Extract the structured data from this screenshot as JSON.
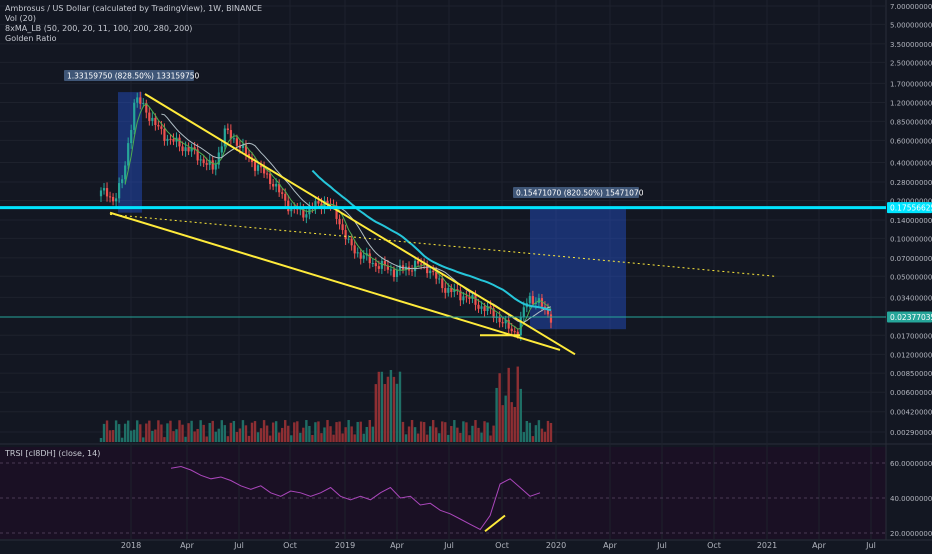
{
  "header": {
    "title": "Ambrosus / US Dollar (calculated by TradingView), 1W, BINANCE",
    "indicators": [
      "Vol (20)",
      "8xMA_LB (50, 200, 20, 11, 100, 200, 280, 200)",
      "Golden Ratio"
    ]
  },
  "rsi_panel": {
    "label": "TRSI [cI8DH] (close, 14)",
    "ticks": [
      "60.00000000",
      "40.00000000",
      "20.00000000"
    ]
  },
  "annotations": {
    "measure_left": "1.33159750 (828.50%) 133159750",
    "measure_right": "0.15471070 (820.50%) 15471070"
  },
  "price_labels": {
    "resistance": "0.17556625",
    "current": "0.02377035"
  },
  "colors": {
    "background": "#131722",
    "up": "#26a69a",
    "down": "#ef5350",
    "resistance": "#00e5ff",
    "trendline": "#ffeb3b",
    "ma_fast": "#4caf50",
    "ma_slow": "#b0bec5",
    "ma_long": "#26c6da",
    "rsi": "#ab47bc",
    "measure_box": "#2962ff"
  },
  "chart_data": [
    {
      "type": "candlestick",
      "title": "Ambrosus / US Dollar (calculated by TradingView), 1W, BINANCE",
      "y_scale": "log",
      "x_ticks": [
        "2018",
        "Apr",
        "Jul",
        "Oct",
        "2019",
        "Apr",
        "Jul",
        "Oct",
        "2020",
        "Apr",
        "Jul",
        "Oct",
        "2021",
        "Apr",
        "Jul"
      ],
      "y_ticks": [
        "7.00000000",
        "5.00000000",
        "3.50000000",
        "2.50000000",
        "1.70000000",
        "1.20000000",
        "0.85000000",
        "0.60000000",
        "0.40000000",
        "0.28000000",
        "0.20000000",
        "0.14000000",
        "0.10000000",
        "0.07000000",
        "0.05000000",
        "0.03400000",
        "0.02377035",
        "0.01700000",
        "0.01200000",
        "0.00850000",
        "0.00600000",
        "0.00420000",
        "0.00290000"
      ],
      "ylim": [
        0.0024,
        7.5
      ],
      "resistance_level": 0.17556625,
      "last_price": 0.02377035,
      "price_path": [
        0.24,
        0.2,
        0.3,
        1.3,
        1.05,
        0.75,
        0.62,
        0.55,
        0.5,
        0.42,
        0.35,
        0.7,
        0.6,
        0.45,
        0.36,
        0.3,
        0.22,
        0.17,
        0.16,
        0.18,
        0.2,
        0.15,
        0.09,
        0.075,
        0.065,
        0.06,
        0.055,
        0.057,
        0.062,
        0.06,
        0.045,
        0.038,
        0.036,
        0.032,
        0.028,
        0.025,
        0.02,
        0.018,
        0.035,
        0.03,
        0.024
      ]
    },
    {
      "type": "line",
      "title": "TRSI [cI8DH] (close, 14)",
      "ylim": [
        20,
        65
      ],
      "y_ticks": [
        60,
        40,
        20
      ],
      "values": [
        57,
        58,
        56,
        53,
        51,
        52,
        50,
        47,
        45,
        47,
        43,
        41,
        44,
        43,
        41,
        43,
        46,
        41,
        39,
        41,
        39,
        43,
        46,
        40,
        41,
        36,
        37,
        33,
        31,
        28,
        25,
        22,
        30,
        48,
        51,
        46,
        41,
        43
      ]
    }
  ]
}
